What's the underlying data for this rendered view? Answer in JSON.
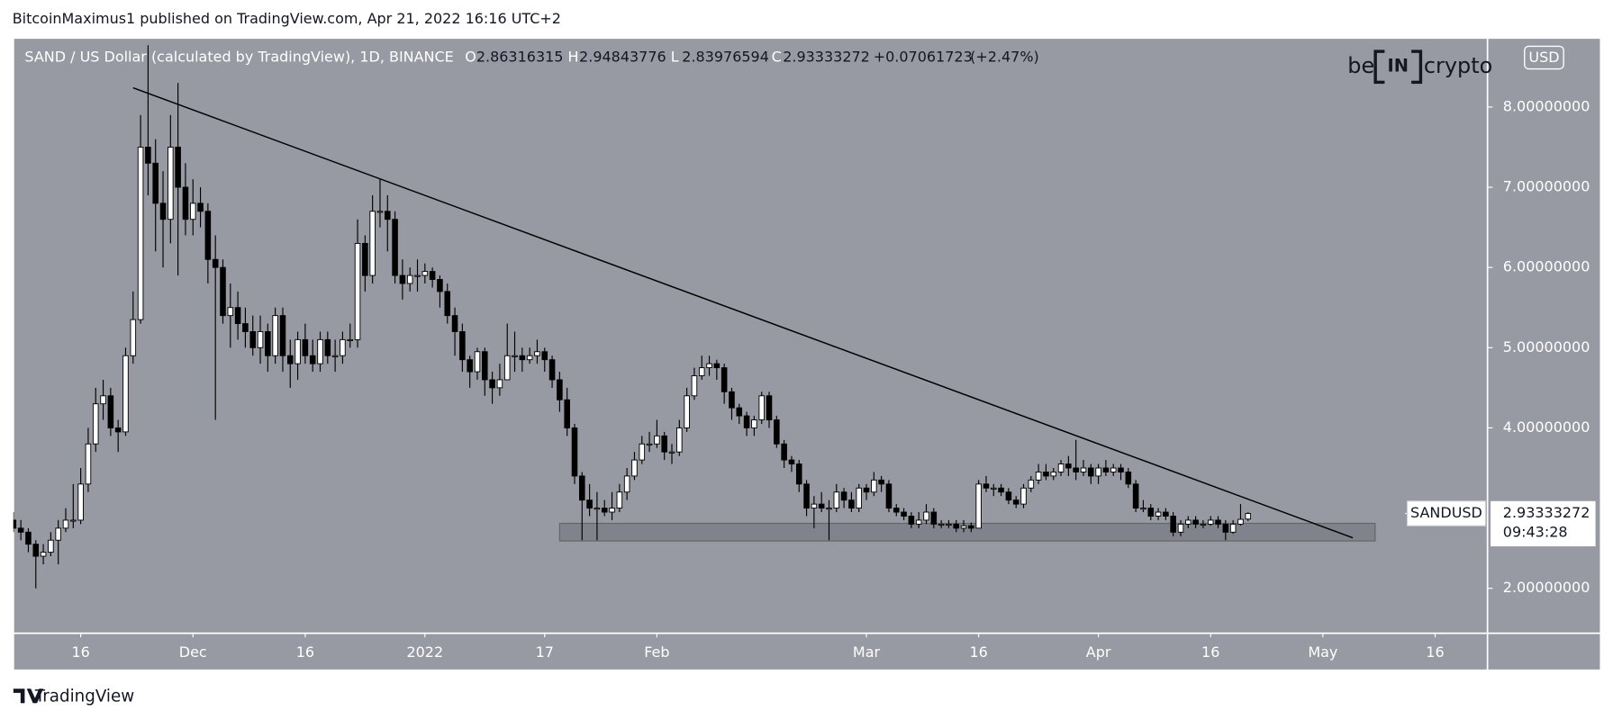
{
  "header": "BitcoinMaximus1 published on TradingView.com, Apr 21, 2022 16:16 UTC+2",
  "footer": "TradingView",
  "watermark": {
    "left": "be",
    "middle": "IN",
    "right": "crypto"
  },
  "currency_button": "USD",
  "chart_data": {
    "type": "candlestick",
    "legend": {
      "symbol": "SAND / US Dollar (calculated by TradingView), 1D, BINANCE",
      "fields": [
        {
          "label": "O",
          "value": 2.86316315
        },
        {
          "label": "H",
          "value": 2.94843776
        },
        {
          "label": "L",
          "value": 2.83976594
        },
        {
          "label": "C",
          "value": 2.93333272
        }
      ],
      "change": "+0.07061723",
      "change_pct": "(+2.47%)"
    },
    "price_tag": {
      "name": "SANDUSD",
      "value": 2.93333272,
      "countdown": "09:43:28"
    },
    "up_color": "#ffffff",
    "down_color": "#000000",
    "wick_color": "#000000",
    "x": [
      "2021-11-07",
      "2021-11-08",
      "2021-11-09",
      "2021-11-10",
      "2021-11-11",
      "2021-11-12",
      "2021-11-13",
      "2021-11-14",
      "2021-11-15",
      "2021-11-16",
      "2021-11-17",
      "2021-11-18",
      "2021-11-19",
      "2021-11-20",
      "2021-11-21",
      "2021-11-22",
      "2021-11-23",
      "2021-11-24",
      "2021-11-25",
      "2021-11-26",
      "2021-11-27",
      "2021-11-28",
      "2021-11-29",
      "2021-11-30",
      "2021-12-01",
      "2021-12-02",
      "2021-12-03",
      "2021-12-04",
      "2021-12-05",
      "2021-12-06",
      "2021-12-07",
      "2021-12-08",
      "2021-12-09",
      "2021-12-10",
      "2021-12-11",
      "2021-12-12",
      "2021-12-13",
      "2021-12-14",
      "2021-12-15",
      "2021-12-16",
      "2021-12-17",
      "2021-12-18",
      "2021-12-19",
      "2021-12-20",
      "2021-12-21",
      "2021-12-22",
      "2021-12-23",
      "2021-12-24",
      "2021-12-25",
      "2021-12-26",
      "2021-12-27",
      "2021-12-28",
      "2021-12-29",
      "2021-12-30",
      "2021-12-31",
      "2022-01-01",
      "2022-01-02",
      "2022-01-03",
      "2022-01-04",
      "2022-01-05",
      "2022-01-06",
      "2022-01-07",
      "2022-01-08",
      "2022-01-09",
      "2022-01-10",
      "2022-01-11",
      "2022-01-12",
      "2022-01-13",
      "2022-01-14",
      "2022-01-15",
      "2022-01-16",
      "2022-01-17",
      "2022-01-18",
      "2022-01-19",
      "2022-01-20",
      "2022-01-21",
      "2022-01-22",
      "2022-01-23",
      "2022-01-24",
      "2022-01-25",
      "2022-01-26",
      "2022-01-27",
      "2022-01-28",
      "2022-01-29",
      "2022-01-30",
      "2022-01-31",
      "2022-02-01",
      "2022-02-02",
      "2022-02-03",
      "2022-02-04",
      "2022-02-05",
      "2022-02-06",
      "2022-02-07",
      "2022-02-08",
      "2022-02-09",
      "2022-02-10",
      "2022-02-11",
      "2022-02-12",
      "2022-02-13",
      "2022-02-14",
      "2022-02-15",
      "2022-02-16",
      "2022-02-17",
      "2022-02-18",
      "2022-02-19",
      "2022-02-20",
      "2022-02-21",
      "2022-02-22",
      "2022-02-23",
      "2022-02-24",
      "2022-02-25",
      "2022-02-26",
      "2022-02-27",
      "2022-02-28",
      "2022-03-01",
      "2022-03-02",
      "2022-03-03",
      "2022-03-04",
      "2022-03-05",
      "2022-03-06",
      "2022-03-07",
      "2022-03-08",
      "2022-03-09",
      "2022-03-10",
      "2022-03-11",
      "2022-03-12",
      "2022-03-13",
      "2022-03-14",
      "2022-03-15",
      "2022-03-16",
      "2022-03-17",
      "2022-03-18",
      "2022-03-19",
      "2022-03-20",
      "2022-03-21",
      "2022-03-22",
      "2022-03-23",
      "2022-03-24",
      "2022-03-25",
      "2022-03-26",
      "2022-03-27",
      "2022-03-28",
      "2022-03-29",
      "2022-03-30",
      "2022-03-31",
      "2022-04-01",
      "2022-04-02",
      "2022-04-03",
      "2022-04-04",
      "2022-04-05",
      "2022-04-06",
      "2022-04-07",
      "2022-04-08",
      "2022-04-09",
      "2022-04-10",
      "2022-04-11",
      "2022-04-12",
      "2022-04-13",
      "2022-04-14",
      "2022-04-15",
      "2022-04-16",
      "2022-04-17",
      "2022-04-18",
      "2022-04-19",
      "2022-04-20",
      "2022-04-21"
    ],
    "open": [
      2.85,
      2.75,
      2.7,
      2.55,
      2.4,
      2.45,
      2.6,
      2.75,
      2.85,
      2.85,
      3.3,
      3.8,
      4.3,
      4.4,
      4.0,
      3.95,
      4.9,
      5.35,
      7.5,
      7.3,
      6.8,
      6.6,
      7.5,
      7.0,
      6.6,
      6.8,
      6.7,
      6.1,
      6.0,
      5.4,
      5.5,
      5.3,
      5.2,
      5.0,
      5.2,
      4.9,
      5.4,
      4.9,
      4.8,
      5.1,
      4.9,
      4.8,
      5.1,
      4.9,
      4.9,
      5.1,
      5.1,
      6.3,
      5.9,
      6.7,
      6.7,
      6.6,
      5.9,
      5.8,
      5.9,
      5.9,
      5.95,
      5.85,
      5.7,
      5.4,
      5.2,
      4.85,
      4.7,
      4.95,
      4.6,
      4.5,
      4.6,
      4.9,
      4.9,
      4.85,
      4.9,
      4.95,
      4.85,
      4.6,
      4.35,
      4.0,
      3.4,
      3.1,
      3.0,
      3.0,
      2.95,
      3.0,
      3.2,
      3.4,
      3.6,
      3.8,
      3.8,
      3.9,
      3.7,
      3.7,
      4.0,
      4.4,
      4.65,
      4.75,
      4.8,
      4.75,
      4.45,
      4.25,
      4.15,
      4.0,
      4.1,
      4.4,
      4.1,
      3.8,
      3.6,
      3.55,
      3.3,
      3.0,
      3.05,
      3.0,
      3.0,
      3.2,
      3.1,
      3.0,
      3.25,
      3.2,
      3.35,
      3.3,
      3.0,
      2.95,
      2.9,
      2.8,
      2.85,
      2.95,
      2.8,
      2.8,
      2.8,
      2.75,
      2.78,
      2.75,
      3.3,
      3.25,
      3.25,
      3.2,
      3.1,
      3.05,
      3.25,
      3.35,
      3.45,
      3.4,
      3.45,
      3.55,
      3.5,
      3.45,
      3.5,
      3.4,
      3.5,
      3.45,
      3.5,
      3.45,
      3.3,
      3.0,
      3.0,
      2.9,
      2.95,
      2.9,
      2.7,
      2.8,
      2.85,
      2.8,
      2.8,
      2.85,
      2.8,
      2.7,
      2.8,
      2.86316315
    ],
    "high": [
      2.95,
      2.85,
      2.75,
      2.6,
      2.55,
      2.7,
      2.85,
      3.0,
      3.3,
      3.5,
      4.0,
      4.5,
      4.6,
      4.5,
      4.1,
      5.0,
      5.7,
      7.9,
      8.77,
      7.6,
      7.2,
      7.9,
      8.3,
      7.3,
      7.1,
      7.0,
      6.8,
      6.4,
      6.1,
      5.8,
      5.7,
      5.5,
      5.4,
      5.4,
      5.3,
      5.5,
      5.5,
      5.1,
      5.2,
      5.3,
      5.1,
      5.2,
      5.2,
      5.1,
      5.2,
      5.3,
      6.6,
      6.4,
      6.9,
      7.1,
      6.9,
      6.7,
      6.1,
      6.0,
      6.1,
      6.05,
      6.0,
      5.9,
      5.8,
      5.5,
      5.3,
      4.9,
      5.0,
      5.0,
      4.7,
      4.8,
      5.3,
      5.2,
      5.0,
      5.0,
      5.1,
      5.0,
      4.9,
      4.7,
      4.5,
      4.05,
      3.45,
      3.3,
      3.2,
      3.1,
      3.2,
      3.3,
      3.5,
      3.7,
      3.9,
      3.95,
      4.1,
      3.95,
      3.8,
      4.1,
      4.5,
      4.75,
      4.9,
      4.9,
      4.85,
      4.8,
      4.5,
      4.3,
      4.2,
      4.15,
      4.45,
      4.45,
      4.15,
      3.85,
      3.65,
      3.6,
      3.35,
      3.15,
      3.2,
      3.1,
      3.3,
      3.25,
      3.2,
      3.3,
      3.3,
      3.45,
      3.4,
      3.35,
      3.05,
      3.0,
      2.95,
      2.95,
      3.05,
      3.0,
      2.85,
      2.85,
      2.85,
      2.85,
      2.82,
      3.35,
      3.4,
      3.3,
      3.3,
      3.25,
      3.15,
      3.3,
      3.4,
      3.55,
      3.55,
      3.5,
      3.6,
      3.65,
      3.85,
      3.6,
      3.55,
      3.55,
      3.6,
      3.55,
      3.55,
      3.5,
      3.35,
      3.1,
      3.05,
      3.0,
      3.0,
      2.95,
      2.85,
      2.9,
      2.9,
      2.85,
      2.9,
      2.9,
      2.85,
      2.85,
      3.05,
      2.94843776
    ],
    "low": [
      2.7,
      2.6,
      2.45,
      2.0,
      2.3,
      2.4,
      2.3,
      2.7,
      2.75,
      2.8,
      3.2,
      3.7,
      4.1,
      3.9,
      3.7,
      3.9,
      4.8,
      5.3,
      6.9,
      6.2,
      6.0,
      6.3,
      5.9,
      6.4,
      6.4,
      6.5,
      5.8,
      4.1,
      5.3,
      5.0,
      5.1,
      5.0,
      4.9,
      4.8,
      4.7,
      4.8,
      4.7,
      4.5,
      4.6,
      4.8,
      4.7,
      4.7,
      4.8,
      4.7,
      4.8,
      5.0,
      5.0,
      5.7,
      5.8,
      6.5,
      6.2,
      5.8,
      5.6,
      5.7,
      5.7,
      5.8,
      5.75,
      5.5,
      5.3,
      4.9,
      4.7,
      4.5,
      4.6,
      4.4,
      4.3,
      4.4,
      4.6,
      4.7,
      4.7,
      4.8,
      4.8,
      4.7,
      4.5,
      4.2,
      3.9,
      3.3,
      2.6,
      2.9,
      2.6,
      2.9,
      2.85,
      2.95,
      3.1,
      3.35,
      3.55,
      3.7,
      3.75,
      3.6,
      3.55,
      3.65,
      3.95,
      4.35,
      4.6,
      4.65,
      4.6,
      4.3,
      4.1,
      4.05,
      3.9,
      3.9,
      4.05,
      4.0,
      3.75,
      3.5,
      3.45,
      3.2,
      2.9,
      2.75,
      2.95,
      2.6,
      2.95,
      3.0,
      2.95,
      2.95,
      3.1,
      3.15,
      3.2,
      2.95,
      2.9,
      2.85,
      2.75,
      2.75,
      2.8,
      2.75,
      2.75,
      2.75,
      2.7,
      2.7,
      2.7,
      2.75,
      3.2,
      3.15,
      3.15,
      3.05,
      3.0,
      3.0,
      3.2,
      3.3,
      3.35,
      3.35,
      3.4,
      3.4,
      3.35,
      3.4,
      3.3,
      3.3,
      3.4,
      3.4,
      3.35,
      3.25,
      2.95,
      2.95,
      2.85,
      2.85,
      2.85,
      2.65,
      2.65,
      2.75,
      2.75,
      2.75,
      2.78,
      2.75,
      2.6,
      2.68,
      2.78,
      2.83976594
    ],
    "close": [
      2.75,
      2.7,
      2.55,
      2.4,
      2.45,
      2.6,
      2.75,
      2.85,
      2.85,
      3.3,
      3.8,
      4.3,
      4.4,
      4.0,
      3.95,
      4.9,
      5.35,
      7.5,
      7.3,
      6.8,
      6.6,
      7.5,
      7.0,
      6.6,
      6.8,
      6.7,
      6.1,
      6.0,
      5.4,
      5.5,
      5.3,
      5.2,
      5.0,
      5.2,
      4.9,
      5.4,
      4.9,
      4.8,
      5.1,
      4.9,
      4.8,
      5.1,
      4.9,
      4.9,
      5.1,
      5.1,
      6.3,
      5.9,
      6.7,
      6.7,
      6.6,
      5.9,
      5.8,
      5.9,
      5.9,
      5.95,
      5.85,
      5.7,
      5.4,
      5.2,
      4.85,
      4.7,
      4.95,
      4.6,
      4.5,
      4.6,
      4.9,
      4.9,
      4.85,
      4.9,
      4.95,
      4.85,
      4.6,
      4.35,
      4.0,
      3.4,
      3.1,
      3.0,
      3.0,
      2.95,
      3.0,
      3.2,
      3.4,
      3.6,
      3.8,
      3.8,
      3.9,
      3.7,
      3.7,
      4.0,
      4.4,
      4.65,
      4.75,
      4.8,
      4.75,
      4.45,
      4.25,
      4.15,
      4.0,
      4.1,
      4.4,
      4.1,
      3.8,
      3.6,
      3.55,
      3.3,
      3.0,
      3.05,
      3.0,
      3.0,
      3.2,
      3.1,
      3.0,
      3.25,
      3.2,
      3.35,
      3.3,
      3.0,
      2.95,
      2.9,
      2.8,
      2.85,
      2.95,
      2.8,
      2.8,
      2.8,
      2.75,
      2.78,
      2.75,
      3.3,
      3.25,
      3.25,
      3.2,
      3.1,
      3.05,
      3.25,
      3.35,
      3.45,
      3.4,
      3.45,
      3.55,
      3.5,
      3.45,
      3.5,
      3.4,
      3.5,
      3.45,
      3.5,
      3.45,
      3.3,
      3.0,
      3.0,
      2.9,
      2.95,
      2.9,
      2.7,
      2.8,
      2.85,
      2.8,
      2.8,
      2.85,
      2.8,
      2.7,
      2.8,
      2.86,
      2.93333272
    ],
    "trendline": {
      "x": [
        "2021-11-23",
        "2022-05-05"
      ],
      "y": [
        8.24,
        2.63
      ],
      "color": "#000000"
    },
    "support_zone": {
      "x": [
        "2022-01-19",
        "2022-05-08"
      ],
      "y": [
        2.59,
        2.81
      ]
    },
    "xlim": [
      "2021-11-07",
      "2022-05-23"
    ],
    "xticks": [
      {
        "value": "2021-11-16",
        "label": "16"
      },
      {
        "value": "2021-12-01",
        "label": "Dec"
      },
      {
        "value": "2021-12-16",
        "label": "16"
      },
      {
        "value": "2022-01-01",
        "label": "2022"
      },
      {
        "value": "2022-01-17",
        "label": "17"
      },
      {
        "value": "2022-02-01",
        "label": "Feb"
      },
      {
        "value": "2022-03-01",
        "label": "Mar"
      },
      {
        "value": "2022-03-16",
        "label": "16"
      },
      {
        "value": "2022-04-01",
        "label": "Apr"
      },
      {
        "value": "2022-04-16",
        "label": "16"
      },
      {
        "value": "2022-05-01",
        "label": "May"
      },
      {
        "value": "2022-05-16",
        "label": "16"
      }
    ],
    "ylim": [
      1.44,
      8.86
    ],
    "yticks": [
      {
        "value": 2,
        "label": "2.00000000"
      },
      {
        "value": 4,
        "label": "4.00000000"
      },
      {
        "value": 5,
        "label": "5.00000000"
      },
      {
        "value": 6,
        "label": "6.00000000"
      },
      {
        "value": 7,
        "label": "7.00000000"
      },
      {
        "value": 8,
        "label": "8.00000000"
      }
    ],
    "grid": false
  }
}
